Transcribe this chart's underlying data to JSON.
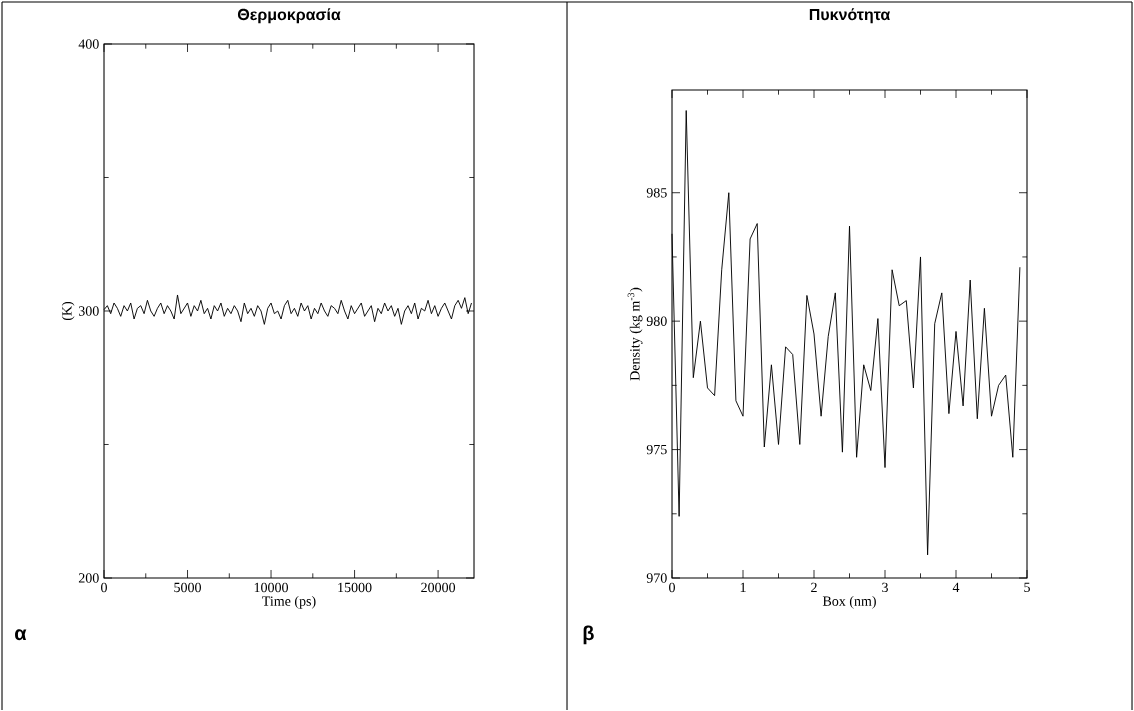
{
  "chart_data": [
    {
      "type": "line",
      "title": "Θερμοκρασία",
      "xlabel": "Time (ps)",
      "ylabel": "(K)",
      "annotations": [
        "α"
      ],
      "x": [
        0,
        200,
        400,
        600,
        800,
        1000,
        1200,
        1400,
        1600,
        1800,
        2000,
        2200,
        2400,
        2600,
        2800,
        3000,
        3200,
        3400,
        3600,
        3800,
        4000,
        4200,
        4400,
        4600,
        4800,
        5000,
        5200,
        5400,
        5600,
        5800,
        6000,
        6200,
        6400,
        6600,
        6800,
        7000,
        7200,
        7400,
        7600,
        7800,
        8000,
        8200,
        8400,
        8600,
        8800,
        9000,
        9200,
        9400,
        9600,
        9800,
        10000,
        10200,
        10400,
        10600,
        10800,
        11000,
        11200,
        11400,
        11600,
        11800,
        12000,
        12200,
        12400,
        12600,
        12800,
        13000,
        13200,
        13400,
        13600,
        13800,
        14000,
        14200,
        14400,
        14600,
        14800,
        15000,
        15200,
        15400,
        15600,
        15800,
        16000,
        16200,
        16400,
        16600,
        16800,
        17000,
        17200,
        17400,
        17600,
        17800,
        18000,
        18200,
        18400,
        18600,
        18800,
        19000,
        19200,
        19400,
        19600,
        19800,
        20000,
        20200,
        20400,
        20600,
        20800,
        21000,
        21200,
        21400,
        21600,
        21800,
        22000
      ],
      "series": [
        {
          "color": "#000000",
          "values": [
            300.5,
            302,
            299,
            303,
            301,
            298,
            302,
            300,
            303,
            297,
            301,
            302,
            299,
            304,
            300,
            298,
            301,
            303,
            299,
            302,
            300,
            297,
            306,
            299,
            301,
            303,
            298,
            302,
            300,
            304,
            299,
            301,
            297,
            302,
            300,
            303,
            298,
            301,
            299,
            302,
            300,
            296,
            303,
            299,
            301,
            298,
            302,
            300,
            295,
            301,
            303,
            299,
            300,
            297,
            302,
            304,
            299,
            301,
            298,
            303,
            300,
            302,
            297,
            301,
            299,
            303,
            300,
            298,
            302,
            301,
            299,
            304,
            300,
            297,
            302,
            299,
            301,
            303,
            298,
            300,
            302,
            296,
            301,
            299,
            303,
            300,
            302,
            298,
            301,
            295,
            300,
            302,
            299,
            303,
            297,
            301,
            300,
            304,
            299,
            302,
            298,
            301,
            303,
            300,
            297,
            302,
            304,
            301,
            305,
            299,
            303
          ]
        }
      ],
      "xlim": [
        0,
        22150
      ],
      "ylim": [
        200,
        400
      ],
      "xticks": [
        0,
        5000,
        10000,
        15000,
        20000
      ],
      "yticks": [
        200,
        300,
        400
      ],
      "line_style": "solid"
    },
    {
      "type": "line",
      "title": "Πυκνότητα",
      "xlabel": "Box (nm)",
      "ylabel": "Density (kg m$^{-3}$)",
      "annotations": [
        "β"
      ],
      "x": [
        0,
        0.1,
        0.2,
        0.3,
        0.4,
        0.5,
        0.6,
        0.7,
        0.8,
        0.9,
        1.0,
        1.1,
        1.2,
        1.3,
        1.4,
        1.5,
        1.6,
        1.7,
        1.8,
        1.9,
        2.0,
        2.1,
        2.2,
        2.3,
        2.4,
        2.5,
        2.6,
        2.7,
        2.8,
        2.9,
        3.0,
        3.1,
        3.2,
        3.3,
        3.4,
        3.5,
        3.6,
        3.7,
        3.8,
        3.9,
        4.0,
        4.1,
        4.2,
        4.3,
        4.4,
        4.5,
        4.6,
        4.7,
        4.8,
        4.9
      ],
      "series": [
        {
          "color": "#000000",
          "values": [
            983.4,
            972.4,
            988.2,
            977.8,
            980.0,
            977.4,
            977.1,
            982.0,
            985.0,
            976.9,
            976.3,
            983.2,
            983.8,
            975.1,
            978.3,
            975.2,
            979.0,
            978.7,
            975.2,
            981.0,
            979.5,
            976.3,
            979.4,
            981.1,
            974.9,
            983.7,
            974.7,
            978.3,
            977.3,
            980.1,
            974.3,
            982.0,
            980.6,
            980.8,
            977.4,
            982.5,
            970.9,
            979.9,
            981.1,
            976.4,
            979.6,
            976.7,
            981.6,
            976.2,
            980.5,
            976.3,
            977.5,
            977.9,
            974.7,
            982.1
          ]
        }
      ],
      "xlim": [
        0,
        5
      ],
      "ylim": [
        970,
        989
      ],
      "xticks": [
        0,
        1,
        2,
        3,
        4,
        5
      ],
      "yticks": [
        970,
        975,
        980,
        985
      ],
      "line_style": "solid"
    }
  ]
}
